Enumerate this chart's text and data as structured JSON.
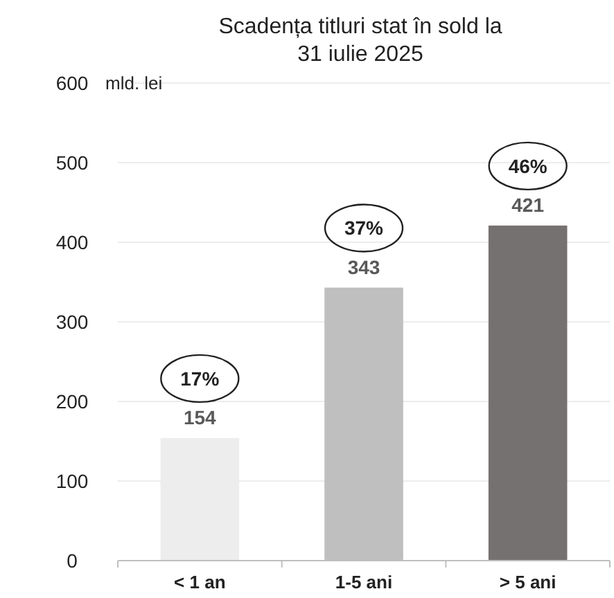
{
  "chart_data": {
    "type": "bar",
    "title": "Scadența titluri stat în sold la\n31 iulie 2025",
    "ylabel": "mld. lei",
    "categories": [
      "< 1 an",
      "1-5 ani",
      "> 5 ani"
    ],
    "values": [
      154,
      343,
      421
    ],
    "colors": [
      "#ededed",
      "#bfbfbf",
      "#767171"
    ],
    "ylim": [
      0,
      600
    ],
    "yticks": [
      0,
      100,
      200,
      300,
      400,
      500,
      600
    ],
    "grid": "y",
    "data_labels": true,
    "annotations": [
      "17%",
      "37%",
      "46%"
    ]
  }
}
